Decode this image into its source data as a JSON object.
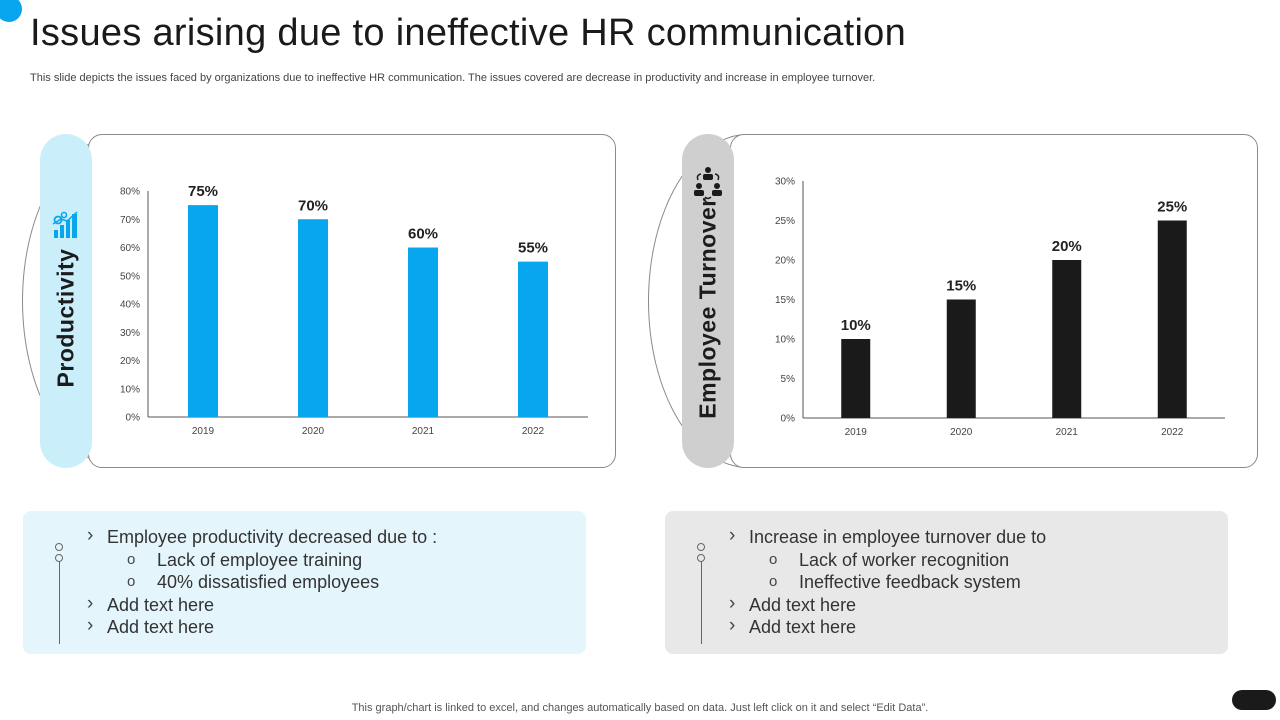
{
  "slide": {
    "title": "Issues arising due to ineffective HR communication",
    "subtitle": "This slide depicts the issues faced by organizations due to ineffective HR communication. The issues covered are decrease in productivity and increase in employee turnover.",
    "footer": "This graph/chart is linked to excel,  and changes automatically based on data. Just left click on it and select “Edit Data”.",
    "accent_color": "#08a6ef",
    "dark_color": "#1a1a1a"
  },
  "panels": {
    "left": {
      "label": "Productivity",
      "icon": "productivity-chart-icon",
      "bullets": {
        "main": "Employee productivity decreased due to :",
        "sub": [
          "Lack of employee training",
          "40% dissatisfied employees"
        ],
        "extra": [
          "Add text here",
          "Add text here"
        ]
      }
    },
    "right": {
      "label": "Employee Turnover",
      "icon": "people-turnover-icon",
      "bullets": {
        "main": "Increase in employee turnover due to",
        "sub": [
          "Lack of worker recognition",
          "Ineffective feedback system"
        ],
        "extra": [
          "Add text here",
          "Add text here"
        ]
      }
    }
  },
  "chart_data": [
    {
      "type": "bar",
      "title": "Productivity",
      "categories": [
        "2019",
        "2020",
        "2021",
        "2022"
      ],
      "values": [
        75,
        70,
        60,
        55
      ],
      "data_labels": [
        "75%",
        "70%",
        "60%",
        "55%"
      ],
      "ylim": [
        0,
        80
      ],
      "yticks": [
        "0%",
        "10%",
        "20%",
        "30%",
        "40%",
        "50%",
        "60%",
        "70%",
        "80%"
      ],
      "color": "#08a6ef",
      "xlabel": "",
      "ylabel": ""
    },
    {
      "type": "bar",
      "title": "Employee Turnover",
      "categories": [
        "2019",
        "2020",
        "2021",
        "2022"
      ],
      "values": [
        10,
        15,
        20,
        25
      ],
      "data_labels": [
        "10%",
        "15%",
        "20%",
        "25%"
      ],
      "ylim": [
        0,
        30
      ],
      "yticks": [
        "0%",
        "5%",
        "10%",
        "15%",
        "20%",
        "25%",
        "30%"
      ],
      "color": "#1a1a1a",
      "xlabel": "",
      "ylabel": ""
    }
  ]
}
